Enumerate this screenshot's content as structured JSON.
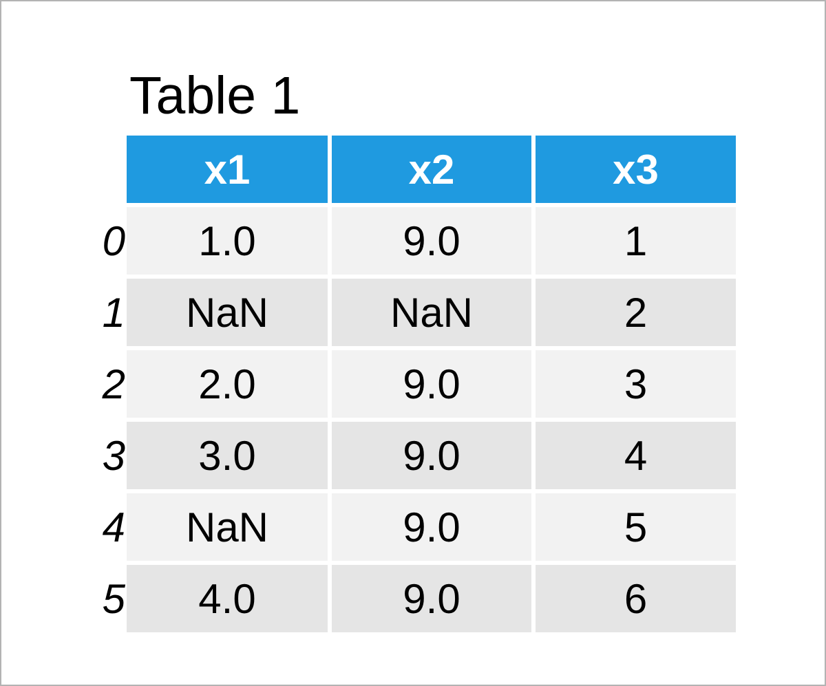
{
  "title": "Table 1",
  "columns": [
    "x1",
    "x2",
    "x3"
  ],
  "index": [
    "0",
    "1",
    "2",
    "3",
    "4",
    "5"
  ],
  "rows": [
    [
      "1.0",
      "9.0",
      "1"
    ],
    [
      "NaN",
      "NaN",
      "2"
    ],
    [
      "2.0",
      "9.0",
      "3"
    ],
    [
      "3.0",
      "9.0",
      "4"
    ],
    [
      "NaN",
      "9.0",
      "5"
    ],
    [
      "4.0",
      "9.0",
      "6"
    ]
  ],
  "colors": {
    "header_bg": "#1f9ae0",
    "header_text": "#ffffff",
    "row_light": "#f2f2f2",
    "row_dark": "#e5e5e5",
    "frame_border": "#b3b3b3"
  }
}
